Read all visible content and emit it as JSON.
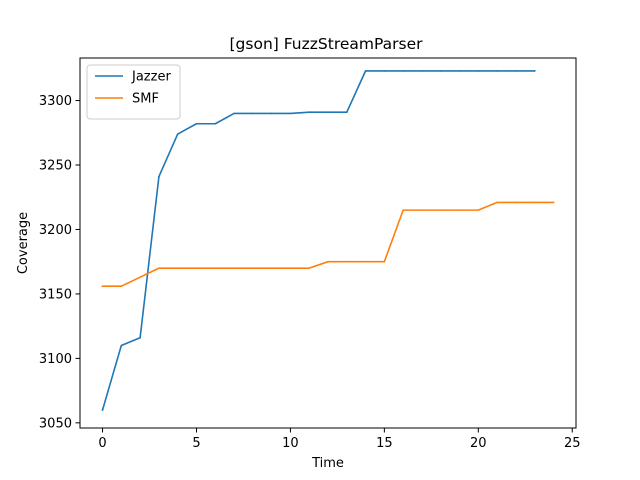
{
  "chart_data": {
    "type": "line",
    "title": "[gson] FuzzStreamParser",
    "xlabel": "Time",
    "ylabel": "Coverage",
    "xlim": [
      -1.2,
      25.2
    ],
    "ylim": [
      3046,
      3333
    ],
    "xticks": [
      0,
      5,
      10,
      15,
      20,
      25
    ],
    "yticks": [
      3050,
      3100,
      3150,
      3200,
      3250,
      3300
    ],
    "grid": false,
    "legend": "upper left",
    "series": [
      {
        "name": "Jazzer",
        "color": "#1f77b4",
        "x": [
          0,
          1,
          2,
          3,
          4,
          5,
          6,
          7,
          8,
          9,
          10,
          11,
          12,
          13,
          14,
          15,
          16,
          17,
          18,
          19,
          20,
          21,
          22,
          23
        ],
        "values": [
          3060,
          3110,
          3116,
          3241,
          3274,
          3282,
          3282,
          3290,
          3290,
          3290,
          3290,
          3291,
          3291,
          3291,
          3323,
          3323,
          3323,
          3323,
          3323,
          3323,
          3323,
          3323,
          3323,
          3323
        ]
      },
      {
        "name": "SMF",
        "color": "#ff7f0e",
        "x": [
          0,
          1,
          2,
          3,
          4,
          5,
          6,
          7,
          8,
          9,
          10,
          11,
          12,
          13,
          14,
          15,
          16,
          17,
          18,
          19,
          20,
          21,
          22,
          23,
          24
        ],
        "values": [
          3156,
          3156,
          3163,
          3170,
          3170,
          3170,
          3170,
          3170,
          3170,
          3170,
          3170,
          3170,
          3175,
          3175,
          3175,
          3175,
          3215,
          3215,
          3215,
          3215,
          3215,
          3221,
          3221,
          3221,
          3221
        ]
      }
    ]
  }
}
